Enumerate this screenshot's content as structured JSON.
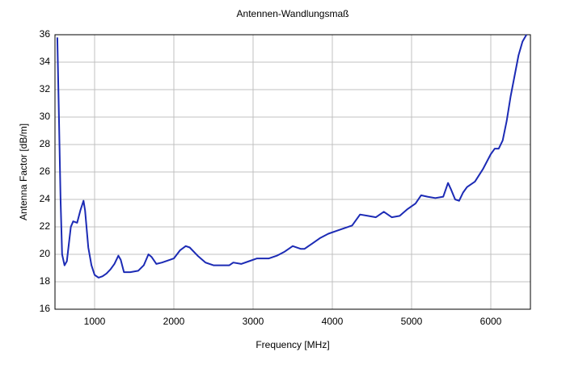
{
  "chart_data": {
    "type": "line",
    "title": "Antennen-Wandlungsmaß",
    "x_label": "Frequency [MHz]",
    "y_label": "Antenna Factor [dB/m]",
    "xlim": [
      500,
      6500
    ],
    "xticks": [
      1000,
      2000,
      3000,
      4000,
      5000,
      6000
    ],
    "ylim": [
      16,
      36
    ],
    "yticks": [
      16,
      18,
      20,
      22,
      24,
      26,
      28,
      30,
      32,
      34,
      36
    ],
    "grid": true,
    "series": [
      {
        "name": "Antenna Factor",
        "color": "#1c2bb5",
        "x": [
          530,
          550,
          570,
          590,
          620,
          650,
          700,
          730,
          780,
          820,
          860,
          880,
          920,
          960,
          1000,
          1050,
          1100,
          1150,
          1200,
          1250,
          1300,
          1330,
          1370,
          1450,
          1550,
          1620,
          1680,
          1720,
          1780,
          1850,
          1950,
          2000,
          2080,
          2150,
          2200,
          2300,
          2400,
          2500,
          2600,
          2700,
          2750,
          2850,
          2950,
          3050,
          3200,
          3300,
          3400,
          3500,
          3600,
          3650,
          3750,
          3850,
          3950,
          4050,
          4150,
          4250,
          4350,
          4450,
          4550,
          4650,
          4750,
          4850,
          4950,
          5050,
          5120,
          5200,
          5300,
          5400,
          5460,
          5500,
          5550,
          5600,
          5650,
          5700,
          5800,
          5900,
          6000,
          6050,
          6100,
          6150,
          6200,
          6250,
          6300,
          6350,
          6400,
          6450
        ],
        "values": [
          35.8,
          30,
          24,
          20,
          19.2,
          19.5,
          22,
          22.4,
          22.3,
          23.2,
          23.9,
          23.2,
          20.5,
          19.2,
          18.5,
          18.3,
          18.4,
          18.6,
          18.9,
          19.3,
          19.9,
          19.6,
          18.7,
          18.7,
          18.8,
          19.2,
          20,
          19.8,
          19.3,
          19.4,
          19.6,
          19.7,
          20.3,
          20.6,
          20.5,
          19.9,
          19.4,
          19.2,
          19.2,
          19.2,
          19.4,
          19.3,
          19.5,
          19.7,
          19.7,
          19.9,
          20.2,
          20.6,
          20.4,
          20.4,
          20.8,
          21.2,
          21.5,
          21.7,
          21.9,
          22.1,
          22.9,
          22.8,
          22.7,
          23.1,
          22.7,
          22.8,
          23.3,
          23.7,
          24.3,
          24.2,
          24.1,
          24.2,
          25.2,
          24.7,
          24.0,
          23.9,
          24.5,
          24.9,
          25.3,
          26.2,
          27.3,
          27.7,
          27.7,
          28.3,
          29.7,
          31.5,
          33,
          34.5,
          35.5,
          36
        ]
      }
    ]
  }
}
